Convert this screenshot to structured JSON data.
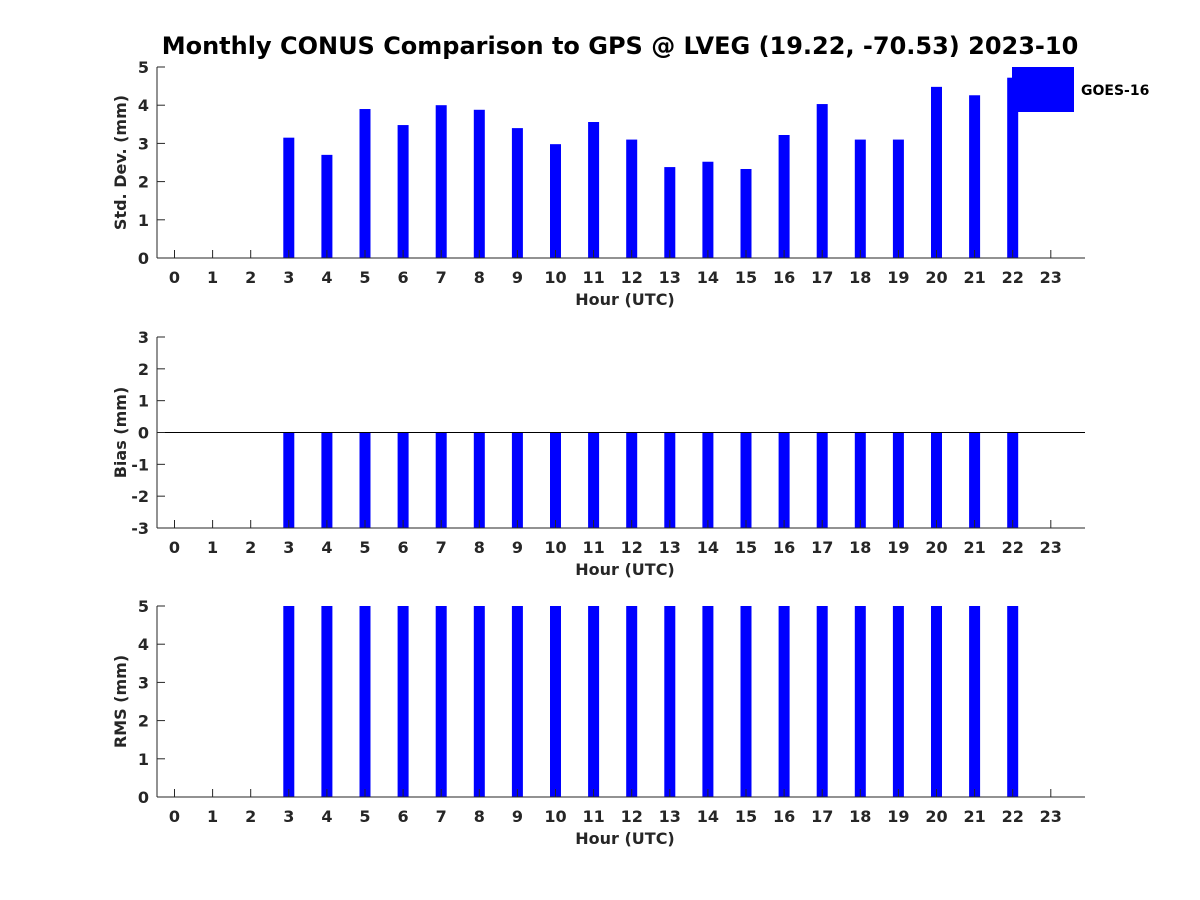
{
  "title": "Monthly CONUS Comparison to GPS @ LVEG (19.22, -70.53) 2023-10",
  "colors": {
    "bar": "#0000ff",
    "axis": "#262626",
    "background": "#ffffff"
  },
  "legend": {
    "label": "GOES-16",
    "placement": "top-right"
  },
  "chart_data": [
    {
      "type": "bar",
      "ylabel": "Std. Dev. (mm)",
      "xlabel": "Hour (UTC)",
      "ylim": [
        0,
        5
      ],
      "yticks": [
        0,
        1,
        2,
        3,
        4,
        5
      ],
      "xticks": [
        0,
        1,
        2,
        3,
        4,
        5,
        6,
        7,
        8,
        9,
        10,
        11,
        12,
        13,
        14,
        15,
        16,
        17,
        18,
        19,
        20,
        21,
        22,
        23
      ],
      "series": [
        {
          "name": "GOES-16",
          "values": [
            null,
            null,
            null,
            3.15,
            2.7,
            3.9,
            3.48,
            4.0,
            3.88,
            3.4,
            2.98,
            3.56,
            3.1,
            2.38,
            2.52,
            2.33,
            3.22,
            4.03,
            3.1,
            3.1,
            4.48,
            4.26,
            4.72,
            null
          ]
        }
      ]
    },
    {
      "type": "bar",
      "ylabel": "Bias (mm)",
      "xlabel": "Hour (UTC)",
      "ylim": [
        -3,
        3
      ],
      "yticks": [
        -3,
        -2,
        -1,
        0,
        1,
        2,
        3
      ],
      "xticks": [
        0,
        1,
        2,
        3,
        4,
        5,
        6,
        7,
        8,
        9,
        10,
        11,
        12,
        13,
        14,
        15,
        16,
        17,
        18,
        19,
        20,
        21,
        22,
        23
      ],
      "series": [
        {
          "name": "GOES-16",
          "values": [
            null,
            null,
            null,
            -3,
            -3,
            -3,
            -3,
            -3,
            -3,
            -3,
            -3,
            -3,
            -3,
            -3,
            -3,
            -3,
            -3,
            -3,
            -3,
            -3,
            -3,
            -3,
            -3,
            null
          ]
        }
      ]
    },
    {
      "type": "bar",
      "ylabel": "RMS (mm)",
      "xlabel": "Hour (UTC)",
      "ylim": [
        0,
        5
      ],
      "yticks": [
        0,
        1,
        2,
        3,
        4,
        5
      ],
      "xticks": [
        0,
        1,
        2,
        3,
        4,
        5,
        6,
        7,
        8,
        9,
        10,
        11,
        12,
        13,
        14,
        15,
        16,
        17,
        18,
        19,
        20,
        21,
        22,
        23
      ],
      "series": [
        {
          "name": "GOES-16",
          "values": [
            null,
            null,
            null,
            5,
            5,
            5,
            5,
            5,
            5,
            5,
            5,
            5,
            5,
            5,
            5,
            5,
            5,
            5,
            5,
            5,
            5,
            5,
            5,
            null
          ]
        }
      ]
    }
  ]
}
